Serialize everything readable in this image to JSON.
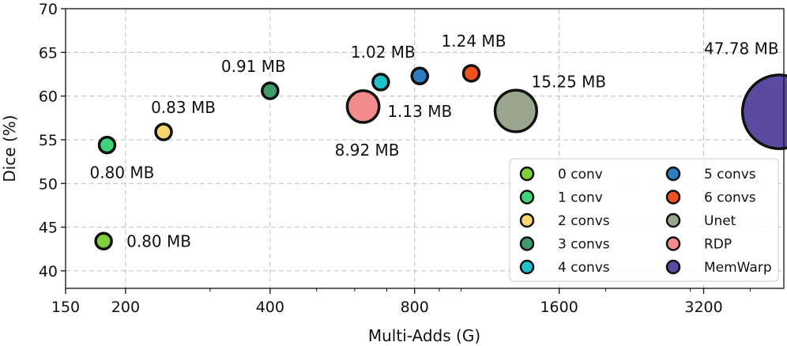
{
  "chart_data": {
    "type": "scatter",
    "xlabel": "Multi-Adds (G)",
    "ylabel": "Dice (%)",
    "x_scale": "log2",
    "xlim": [
      150,
      4700
    ],
    "ylim": [
      38,
      70
    ],
    "x_major_ticks": [
      150,
      200,
      400,
      800,
      1600,
      3200
    ],
    "x_major_tick_labels": [
      "150",
      "200",
      "400",
      "800",
      "1600",
      "3200"
    ],
    "x_minor_ticks": [
      300,
      500,
      600,
      700,
      900,
      1000,
      2000,
      3000,
      4000
    ],
    "y_ticks": [
      40,
      45,
      50,
      55,
      60,
      65,
      70
    ],
    "y_tick_labels": [
      "40",
      "45",
      "50",
      "55",
      "60",
      "65",
      "70"
    ],
    "grid": true,
    "legend_position": "bottom-right",
    "legend_columns": 2,
    "series": [
      {
        "name": "0 conv",
        "color": "#7fd13b",
        "x": 180,
        "y": 43.4,
        "model_size_mb": 0.8,
        "annotation": "0.80 MB"
      },
      {
        "name": "1 conv",
        "color": "#3ed47a",
        "x": 183,
        "y": 54.4,
        "model_size_mb": 0.8,
        "annotation": "0.80 MB"
      },
      {
        "name": "2 convs",
        "color": "#f5d76e",
        "x": 240,
        "y": 55.9,
        "model_size_mb": 0.83,
        "annotation": "0.83 MB"
      },
      {
        "name": "3 convs",
        "color": "#3f9a6a",
        "x": 400,
        "y": 60.6,
        "model_size_mb": 0.91,
        "annotation": "0.91 MB"
      },
      {
        "name": "4 convs",
        "color": "#1fc2c9",
        "x": 680,
        "y": 61.6,
        "model_size_mb": 1.02,
        "annotation": "1.02 MB"
      },
      {
        "name": "5 convs",
        "color": "#2f7bbf",
        "x": 820,
        "y": 62.3,
        "model_size_mb": 1.13,
        "annotation": "1.13 MB"
      },
      {
        "name": "6 convs",
        "color": "#f0521f",
        "x": 1050,
        "y": 62.6,
        "model_size_mb": 1.24,
        "annotation": "1.24 MB"
      },
      {
        "name": "Unet",
        "color": "#9aa58e",
        "x": 1300,
        "y": 58.3,
        "model_size_mb": 15.25,
        "annotation": "15.25 MB"
      },
      {
        "name": "RDP",
        "color": "#f28b8b",
        "x": 625,
        "y": 58.8,
        "model_size_mb": 8.92,
        "annotation": "8.92 MB"
      },
      {
        "name": "MemWarp",
        "color": "#5b4aa2",
        "x": 4600,
        "y": 58.2,
        "model_size_mb": 47.78,
        "annotation": "47.78 MB"
      }
    ]
  }
}
